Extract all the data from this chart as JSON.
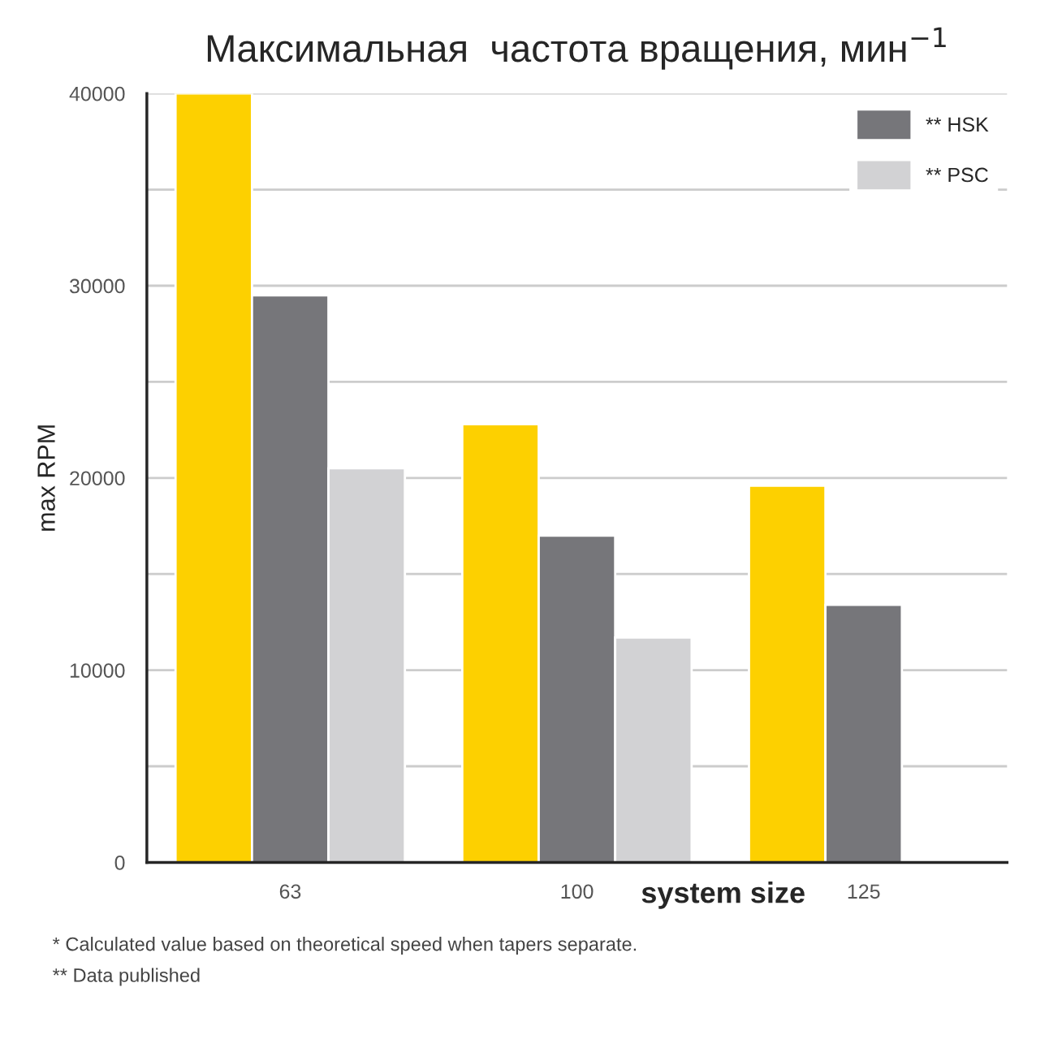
{
  "chart_data": {
    "type": "bar",
    "title": "Максимальная  частота вращения, мин$^{−1}$",
    "xlabel": "system size",
    "ylabel": "max RPM",
    "categories": [
      "63",
      "100",
      "125"
    ],
    "series": [
      {
        "color": "#fdd000",
        "values": [
          40000,
          22800,
          19600
        ]
      },
      {
        "name": "** HSK",
        "color": "#76767a",
        "values": [
          29500,
          17000,
          13400
        ]
      },
      {
        "name": "** PSC",
        "color": "#d2d2d4",
        "values": [
          20500,
          11700,
          null
        ]
      }
    ],
    "ylim": [
      0,
      40000
    ],
    "yticks": [
      0,
      {
        "value": 5000,
        "label": null
      },
      10000,
      {
        "value": 15000,
        "label": null
      },
      20000,
      {
        "value": 25000,
        "label": null
      },
      30000,
      {
        "value": 35000,
        "label": null
      },
      40000
    ],
    "grid": "y",
    "legend": "top right",
    "annotations": [
      "* Calculated value based on theoretical speed when tapers separate.",
      "** Data published"
    ]
  }
}
